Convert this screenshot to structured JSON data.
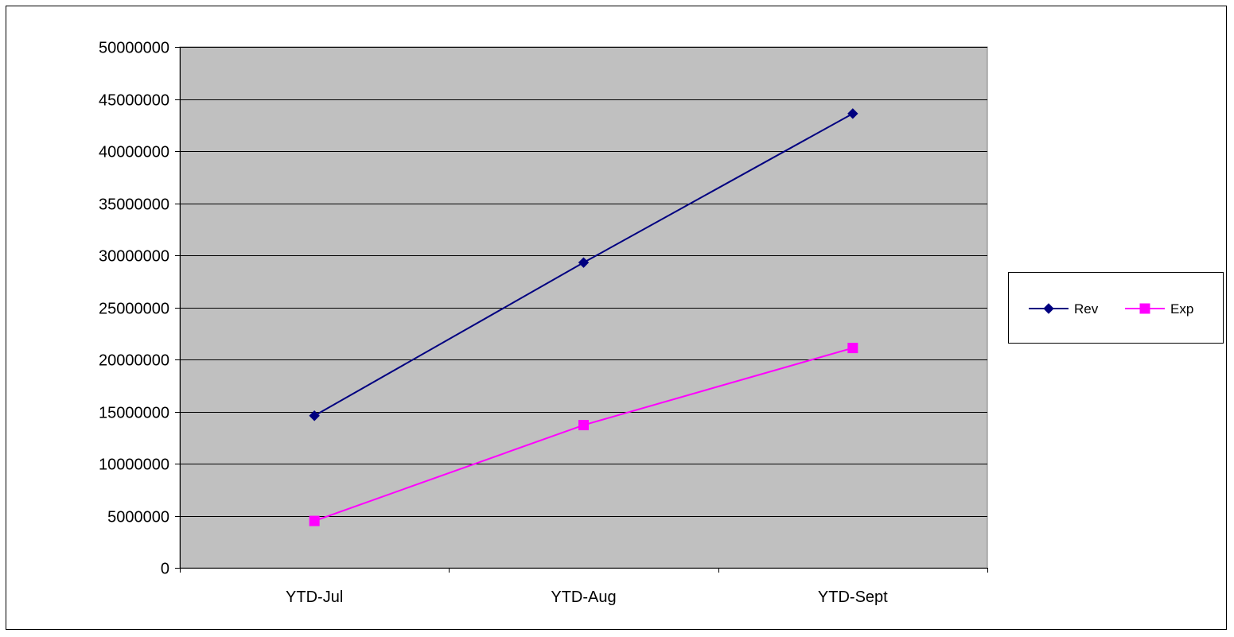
{
  "chart_data": {
    "type": "line",
    "title": "",
    "xlabel": "",
    "ylabel": "",
    "categories": [
      "YTD-Jul",
      "YTD-Aug",
      "YTD-Sept"
    ],
    "ylim": [
      0,
      50000000
    ],
    "yticks": [
      0,
      5000000,
      10000000,
      15000000,
      20000000,
      25000000,
      30000000,
      35000000,
      40000000,
      45000000,
      50000000
    ],
    "grid": true,
    "legend_position": "right",
    "plot_background": "#c0c0c0",
    "series": [
      {
        "name": "Rev",
        "values": [
          14600000,
          29300000,
          43600000
        ],
        "color": "#000080",
        "marker": "diamond"
      },
      {
        "name": "Exp",
        "values": [
          4500000,
          13700000,
          21100000
        ],
        "color": "#ff00ff",
        "marker": "square"
      }
    ]
  }
}
